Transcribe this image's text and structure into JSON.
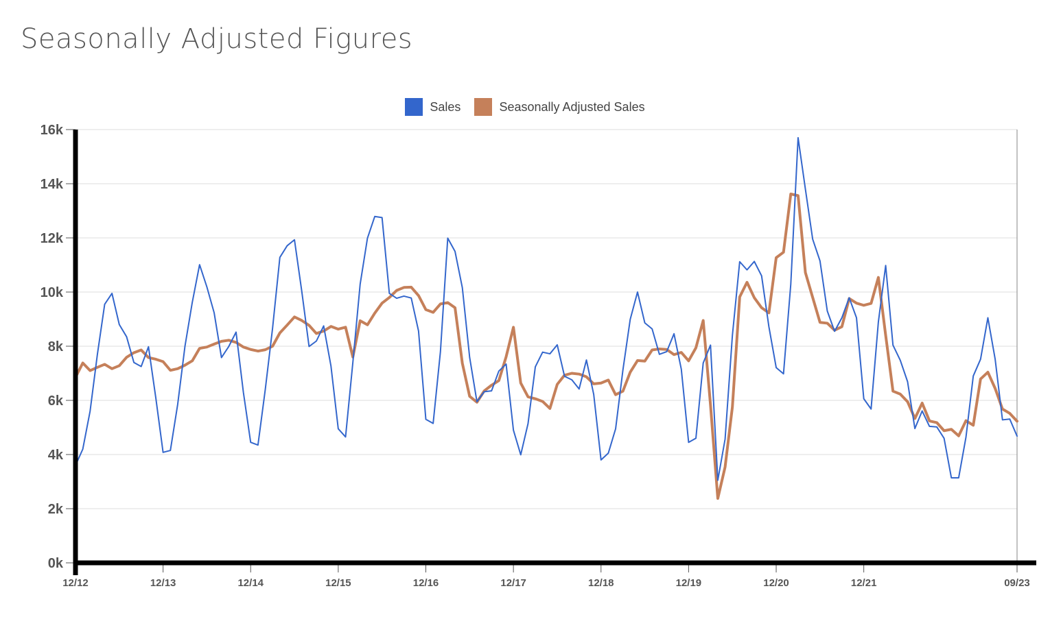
{
  "chart_data": {
    "type": "line",
    "title": "Seasonally Adjusted Figures",
    "x_tick_labels": [
      "12/12",
      "12/13",
      "12/14",
      "12/15",
      "12/16",
      "12/17",
      "12/18",
      "12/19",
      "12/20",
      "12/21",
      "09/23"
    ],
    "y_tick_labels": [
      "0k",
      "2k",
      "4k",
      "6k",
      "8k",
      "10k",
      "12k",
      "14k",
      "16k"
    ],
    "ylim": [
      0,
      16000
    ],
    "x_range": [
      "2012-12",
      "2023-09"
    ],
    "grid": true,
    "legend_position": "top-center",
    "series": [
      {
        "name": "Sales",
        "color": "#3366cc",
        "values": [
          3600,
          4200,
          5600,
          7700,
          9550,
          9950,
          8800,
          8350,
          7400,
          7250,
          7980,
          6100,
          4080,
          4150,
          5850,
          8000,
          9620,
          11010,
          10190,
          9230,
          7580,
          7990,
          8520,
          6300,
          4450,
          4350,
          6400,
          8660,
          11280,
          11710,
          11930,
          10030,
          7990,
          8190,
          8750,
          7270,
          4950,
          4650,
          7400,
          10290,
          11990,
          12790,
          12750,
          9950,
          9770,
          9850,
          9780,
          8560,
          5300,
          5150,
          7800,
          11990,
          11500,
          10160,
          7590,
          5950,
          6320,
          6350,
          7080,
          7340,
          4900,
          3990,
          5140,
          7240,
          7780,
          7720,
          8050,
          6890,
          6760,
          6420,
          7490,
          6220,
          3800,
          4050,
          4950,
          7120,
          8990,
          10000,
          8860,
          8640,
          7700,
          7800,
          8460,
          7150,
          4450,
          4600,
          7380,
          8040,
          3050,
          4570,
          8400,
          11120,
          10820,
          11130,
          10600,
          8720,
          7210,
          6980,
          10290,
          15700,
          13800,
          11950,
          11150,
          9300,
          8550,
          9050,
          9790,
          9050,
          6060,
          5680,
          8900,
          10980,
          8040,
          7480,
          6690,
          4960,
          5610,
          5040,
          5020,
          4600,
          3140,
          3140,
          4640,
          6900,
          7520,
          9050,
          7520,
          5280,
          5310,
          4680
        ]
      },
      {
        "name": "Seasonally Adjusted Sales",
        "color": "#c5805a",
        "values": [
          6850,
          7380,
          7100,
          7220,
          7330,
          7170,
          7280,
          7590,
          7760,
          7860,
          7580,
          7520,
          7430,
          7110,
          7170,
          7300,
          7460,
          7920,
          7970,
          8080,
          8180,
          8220,
          8140,
          7970,
          7880,
          7820,
          7870,
          8000,
          8490,
          8780,
          9080,
          8950,
          8770,
          8470,
          8560,
          8730,
          8630,
          8700,
          7600,
          8940,
          8790,
          9220,
          9590,
          9800,
          10060,
          10170,
          10180,
          9870,
          9350,
          9250,
          9560,
          9610,
          9420,
          7370,
          6150,
          5930,
          6350,
          6560,
          6730,
          7610,
          8700,
          6640,
          6130,
          6060,
          5960,
          5700,
          6590,
          6930,
          7000,
          6970,
          6870,
          6610,
          6640,
          6750,
          6210,
          6340,
          7040,
          7470,
          7450,
          7860,
          7900,
          7880,
          7690,
          7770,
          7460,
          7940,
          8950,
          5830,
          2380,
          3540,
          5760,
          9820,
          10360,
          9790,
          9420,
          9230,
          11270,
          11470,
          13620,
          13560,
          10720,
          9800,
          8880,
          8850,
          8590,
          8720,
          9760,
          9590,
          9510,
          9580,
          10540,
          8400,
          6340,
          6230,
          5950,
          5330,
          5900,
          5240,
          5180,
          4880,
          4930,
          4690,
          5250,
          5080,
          6790,
          7040,
          6440,
          5680,
          5520,
          5230
        ]
      }
    ]
  }
}
